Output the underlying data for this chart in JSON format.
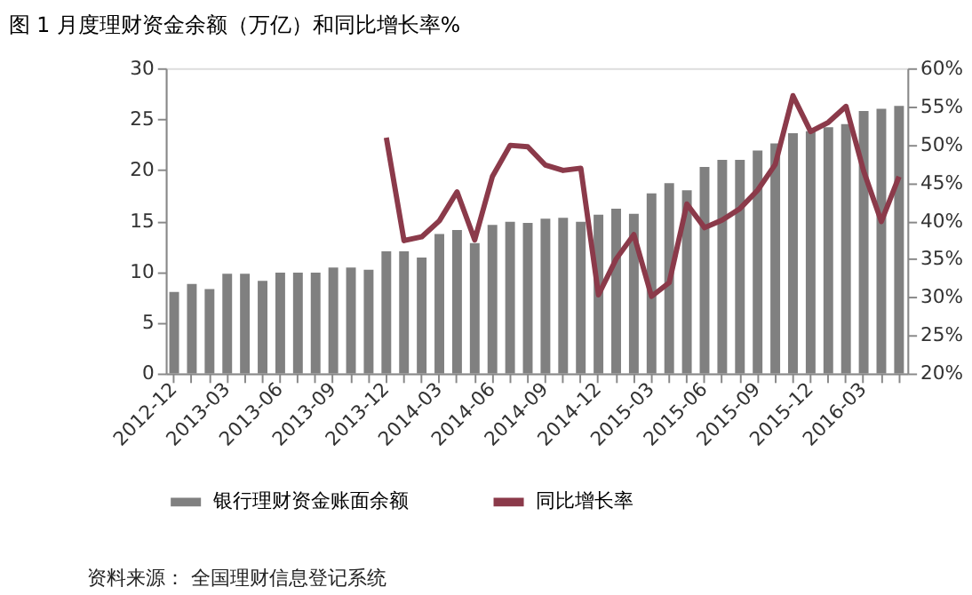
{
  "chart_data": {
    "type": "bar",
    "title": "图 1   月度理财资金余额（万亿）和同比增长率%",
    "categories": [
      "2012-12",
      null,
      null,
      "2013-03",
      null,
      null,
      "2013-06",
      null,
      null,
      "2013-09",
      null,
      null,
      "2013-12",
      null,
      null,
      "2014-03",
      null,
      null,
      "2014-06",
      null,
      null,
      "2014-09",
      null,
      null,
      "2014-12",
      null,
      null,
      "2015-03",
      null,
      null,
      "2015-06",
      null,
      null,
      "2015-09",
      null,
      null,
      "2015-12",
      null,
      null,
      "2016-03",
      null,
      null
    ],
    "series": [
      {
        "name": "银行理财资金账面余额",
        "color": "#808080",
        "values": [
          8.0,
          8.8,
          8.3,
          9.8,
          9.8,
          9.1,
          9.9,
          9.9,
          9.9,
          10.4,
          10.4,
          10.2,
          12.0,
          12.0,
          11.4,
          13.7,
          14.1,
          12.8,
          14.6,
          14.9,
          14.8,
          15.2,
          15.3,
          14.9,
          15.6,
          16.2,
          15.7,
          17.7,
          18.7,
          18.0,
          20.3,
          21.0,
          21.0,
          21.9,
          22.6,
          23.6,
          23.8,
          24.2,
          24.5,
          25.8,
          26.0,
          26.3
        ]
      },
      {
        "name": "同比增长率",
        "type": "line",
        "axis": "y2",
        "color": "#8b3a4a",
        "values": [
          null,
          null,
          null,
          null,
          null,
          null,
          null,
          null,
          null,
          null,
          null,
          null,
          50.9,
          37.4,
          37.9,
          40.0,
          43.8,
          37.5,
          45.8,
          49.9,
          49.7,
          47.3,
          46.6,
          46.9,
          30.3,
          35.0,
          38.2,
          30.1,
          31.9,
          42.2,
          39.1,
          40.1,
          41.6,
          44.0,
          47.4,
          56.4,
          51.7,
          52.9,
          55.0,
          46.5,
          39.9,
          45.8
        ]
      }
    ],
    "ylim": [
      0,
      30
    ],
    "yticks": [
      0,
      5,
      10,
      15,
      20,
      25,
      30
    ],
    "y2lim": [
      20,
      60
    ],
    "y2ticks": [
      {
        "value": 20,
        "label": "20%"
      },
      {
        "value": 25,
        "label": "25%"
      },
      {
        "value": 30,
        "label": "30%"
      },
      {
        "value": 35,
        "label": "35%"
      },
      {
        "value": 40,
        "label": "40%"
      },
      {
        "value": 45,
        "label": "45%"
      },
      {
        "value": 50,
        "label": "50%"
      },
      {
        "value": 55,
        "label": "55%"
      },
      {
        "value": 60,
        "label": "60%"
      }
    ],
    "grid": false,
    "legend": "bottom",
    "marker": "none",
    "line_style": "solid",
    "annotations": [
      "资料来源：   全国理财信息登记系统"
    ]
  }
}
